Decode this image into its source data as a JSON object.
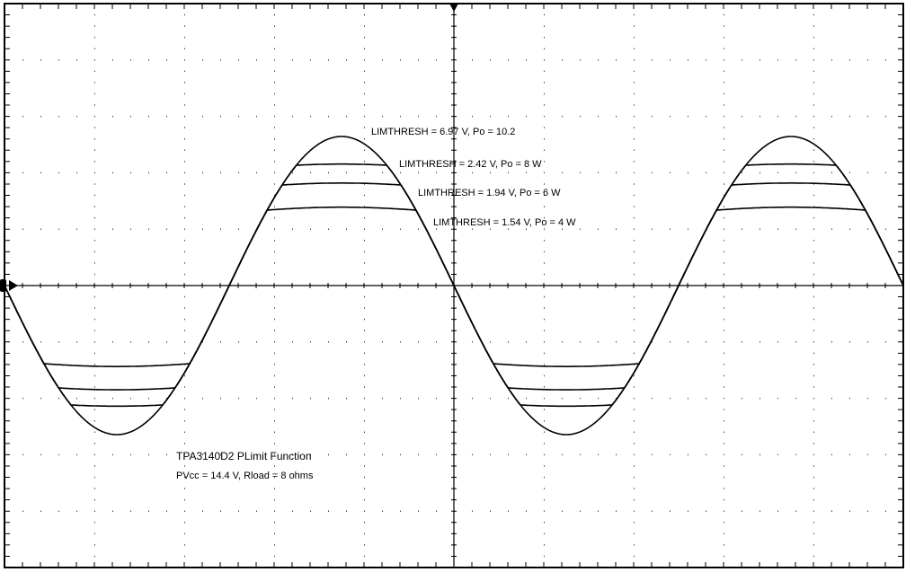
{
  "annotations": [
    "LIMTHRESH = 6.97 V,  Po = 10.2",
    "LIMTHRESH = 2.42 V, Po = 8 W",
    "LIMTHRESH = 1.94 V, Po = 6 W",
    "LIMTHRESH = 1.54 V, Po = 4 W"
  ],
  "caption": {
    "title": "TPA3140D2 PLimit Function",
    "conditions": "PVcc = 14.4 V, Rload = 8 ohms"
  }
}
